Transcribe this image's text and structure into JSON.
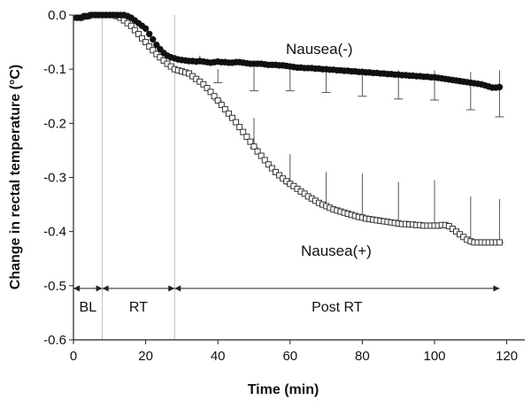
{
  "chart_data": {
    "type": "line",
    "title": "",
    "xlabel": "Time (min)",
    "ylabel": "Change in rectal temperature (°C)",
    "xlim": [
      0,
      125
    ],
    "ylim": [
      -0.6,
      0.0
    ],
    "xticks": [
      0,
      20,
      40,
      60,
      80,
      100,
      120
    ],
    "yticks": [
      0.0,
      -0.1,
      -0.2,
      -0.3,
      -0.4,
      -0.5,
      -0.6
    ],
    "xtick_labels": [
      "0",
      "20",
      "40",
      "60",
      "80",
      "100",
      "120"
    ],
    "ytick_labels": [
      "0.0",
      "-0.1",
      "-0.2",
      "-0.3",
      "-0.4",
      "-0.5",
      "-0.6"
    ],
    "grid": false,
    "phase_dividers": [
      8,
      28
    ],
    "phases": [
      {
        "label": "BL",
        "start": 0,
        "end": 8
      },
      {
        "label": "RT",
        "start": 8,
        "end": 28
      },
      {
        "label": "Post RT",
        "start": 28,
        "end": 118
      }
    ],
    "phase_y": -0.505,
    "series": [
      {
        "name": "Nausea(-)",
        "marker": "filled-circle",
        "color": "#111111",
        "x": [
          1,
          2,
          3,
          4,
          5,
          6,
          7,
          8,
          9,
          10,
          11,
          12,
          13,
          14,
          15,
          16,
          17,
          18,
          19,
          20,
          21,
          22,
          23,
          24,
          25,
          26,
          27,
          28,
          29,
          30,
          31,
          32,
          33,
          34,
          35,
          36,
          37,
          38,
          39,
          40,
          41,
          42,
          43,
          44,
          45,
          46,
          47,
          48,
          49,
          50,
          51,
          52,
          53,
          54,
          55,
          56,
          57,
          58,
          59,
          60,
          61,
          62,
          63,
          64,
          65,
          66,
          67,
          68,
          69,
          70,
          71,
          72,
          73,
          74,
          75,
          76,
          77,
          78,
          79,
          80,
          81,
          82,
          83,
          84,
          85,
          86,
          87,
          88,
          89,
          90,
          91,
          92,
          93,
          94,
          95,
          96,
          97,
          98,
          99,
          100,
          101,
          102,
          103,
          104,
          105,
          106,
          107,
          108,
          109,
          110,
          111,
          112,
          113,
          114,
          115,
          116,
          117,
          118
        ],
        "values": [
          -0.005,
          -0.005,
          -0.002,
          -0.002,
          0.0,
          0.0,
          0.0,
          0.0,
          0.0,
          0.0,
          0.0,
          0.0,
          0.0,
          0.0,
          -0.002,
          -0.005,
          -0.01,
          -0.015,
          -0.02,
          -0.025,
          -0.035,
          -0.045,
          -0.055,
          -0.063,
          -0.07,
          -0.075,
          -0.078,
          -0.08,
          -0.082,
          -0.083,
          -0.084,
          -0.085,
          -0.085,
          -0.086,
          -0.085,
          -0.086,
          -0.087,
          -0.088,
          -0.087,
          -0.086,
          -0.087,
          -0.087,
          -0.088,
          -0.088,
          -0.087,
          -0.087,
          -0.088,
          -0.089,
          -0.09,
          -0.09,
          -0.09,
          -0.09,
          -0.091,
          -0.092,
          -0.092,
          -0.092,
          -0.093,
          -0.093,
          -0.094,
          -0.095,
          -0.096,
          -0.097,
          -0.097,
          -0.098,
          -0.098,
          -0.098,
          -0.099,
          -0.099,
          -0.1,
          -0.1,
          -0.101,
          -0.101,
          -0.102,
          -0.102,
          -0.103,
          -0.103,
          -0.104,
          -0.104,
          -0.105,
          -0.105,
          -0.106,
          -0.106,
          -0.107,
          -0.107,
          -0.108,
          -0.108,
          -0.109,
          -0.109,
          -0.11,
          -0.11,
          -0.111,
          -0.111,
          -0.112,
          -0.112,
          -0.113,
          -0.113,
          -0.114,
          -0.114,
          -0.115,
          -0.115,
          -0.116,
          -0.117,
          -0.118,
          -0.119,
          -0.12,
          -0.121,
          -0.122,
          -0.123,
          -0.124,
          -0.125,
          -0.126,
          -0.127,
          -0.128,
          -0.13,
          -0.132,
          -0.134,
          -0.134,
          -0.133
        ],
        "error_x": [
          35,
          40,
          50,
          60,
          70,
          80,
          90,
          100,
          110,
          118
        ],
        "error_upper": [
          -0.075,
          -0.1,
          -0.097,
          -0.098,
          -0.098,
          -0.102,
          -0.102,
          -0.102,
          -0.105,
          -0.102
        ],
        "error_lower": [
          -0.085,
          -0.125,
          -0.14,
          -0.14,
          -0.143,
          -0.15,
          -0.155,
          -0.157,
          -0.175,
          -0.188
        ]
      },
      {
        "name": "Nausea(+)",
        "marker": "open-square",
        "color": "#333333",
        "x": [
          1,
          2,
          3,
          4,
          5,
          6,
          7,
          8,
          9,
          10,
          11,
          12,
          13,
          14,
          15,
          16,
          17,
          18,
          19,
          20,
          21,
          22,
          23,
          24,
          25,
          26,
          27,
          28,
          29,
          30,
          31,
          32,
          33,
          34,
          35,
          36,
          37,
          38,
          39,
          40,
          41,
          42,
          43,
          44,
          45,
          46,
          47,
          48,
          49,
          50,
          51,
          52,
          53,
          54,
          55,
          56,
          57,
          58,
          59,
          60,
          61,
          62,
          63,
          64,
          65,
          66,
          67,
          68,
          69,
          70,
          71,
          72,
          73,
          74,
          75,
          76,
          77,
          78,
          79,
          80,
          81,
          82,
          83,
          84,
          85,
          86,
          87,
          88,
          89,
          90,
          91,
          92,
          93,
          94,
          95,
          96,
          97,
          98,
          99,
          100,
          101,
          102,
          103,
          104,
          105,
          106,
          107,
          108,
          109,
          110,
          111,
          112,
          113,
          114,
          115,
          116,
          117,
          118
        ],
        "values": [
          -0.005,
          -0.005,
          -0.003,
          -0.002,
          0.0,
          0.0,
          0.0,
          0.0,
          0.0,
          0.0,
          0.0,
          -0.002,
          -0.005,
          -0.01,
          -0.015,
          -0.02,
          -0.028,
          -0.035,
          -0.043,
          -0.05,
          -0.058,
          -0.065,
          -0.072,
          -0.078,
          -0.084,
          -0.09,
          -0.095,
          -0.1,
          -0.102,
          -0.104,
          -0.106,
          -0.108,
          -0.113,
          -0.118,
          -0.123,
          -0.128,
          -0.135,
          -0.142,
          -0.15,
          -0.158,
          -0.166,
          -0.174,
          -0.182,
          -0.19,
          -0.198,
          -0.207,
          -0.216,
          -0.225,
          -0.234,
          -0.243,
          -0.252,
          -0.26,
          -0.268,
          -0.276,
          -0.283,
          -0.29,
          -0.296,
          -0.302,
          -0.307,
          -0.312,
          -0.316,
          -0.321,
          -0.326,
          -0.33,
          -0.335,
          -0.339,
          -0.343,
          -0.347,
          -0.35,
          -0.353,
          -0.356,
          -0.359,
          -0.361,
          -0.363,
          -0.365,
          -0.367,
          -0.369,
          -0.371,
          -0.373,
          -0.374,
          -0.376,
          -0.377,
          -0.378,
          -0.379,
          -0.38,
          -0.381,
          -0.382,
          -0.383,
          -0.384,
          -0.385,
          -0.386,
          -0.386,
          -0.387,
          -0.387,
          -0.388,
          -0.388,
          -0.389,
          -0.389,
          -0.389,
          -0.389,
          -0.389,
          -0.388,
          -0.388,
          -0.39,
          -0.395,
          -0.4,
          -0.405,
          -0.41,
          -0.415,
          -0.418,
          -0.42,
          -0.42,
          -0.42,
          -0.42,
          -0.42,
          -0.42,
          -0.42,
          -0.42
        ],
        "error_x": [
          40,
          50,
          60,
          70,
          80,
          90,
          100,
          110,
          118
        ],
        "error_upper": [
          -0.155,
          -0.19,
          -0.257,
          -0.29,
          -0.293,
          -0.308,
          -0.305,
          -0.335,
          -0.34
        ],
        "error_lower": [
          -0.158,
          -0.245,
          -0.313,
          -0.352,
          -0.375,
          -0.385,
          -0.389,
          -0.415,
          -0.42
        ]
      }
    ]
  }
}
